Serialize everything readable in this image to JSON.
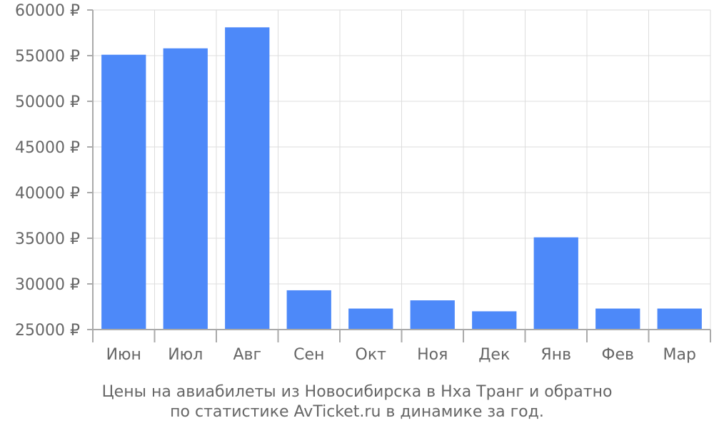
{
  "chart_data": {
    "type": "bar",
    "categories": [
      "Июн",
      "Июл",
      "Авг",
      "Сен",
      "Окт",
      "Ноя",
      "Дек",
      "Янв",
      "Фев",
      "Мар"
    ],
    "values": [
      55100,
      55800,
      58100,
      29300,
      27300,
      28200,
      27000,
      35100,
      27300,
      27300
    ],
    "ylim": [
      25000,
      60000
    ],
    "yticks": [
      25000,
      30000,
      35000,
      40000,
      45000,
      50000,
      55000,
      60000
    ],
    "ytick_labels": [
      "25000 ₽",
      "30000 ₽",
      "35000 ₽",
      "40000 ₽",
      "45000 ₽",
      "50000 ₽",
      "55000 ₽",
      "60000 ₽"
    ],
    "grid": true,
    "bar_color": "#4d89f9"
  },
  "caption": {
    "line1": "Цены на авиабилеты из Новосибирска в Нха Транг и обратно",
    "line2": "по статистике AvTicket.ru в динамике за год."
  }
}
